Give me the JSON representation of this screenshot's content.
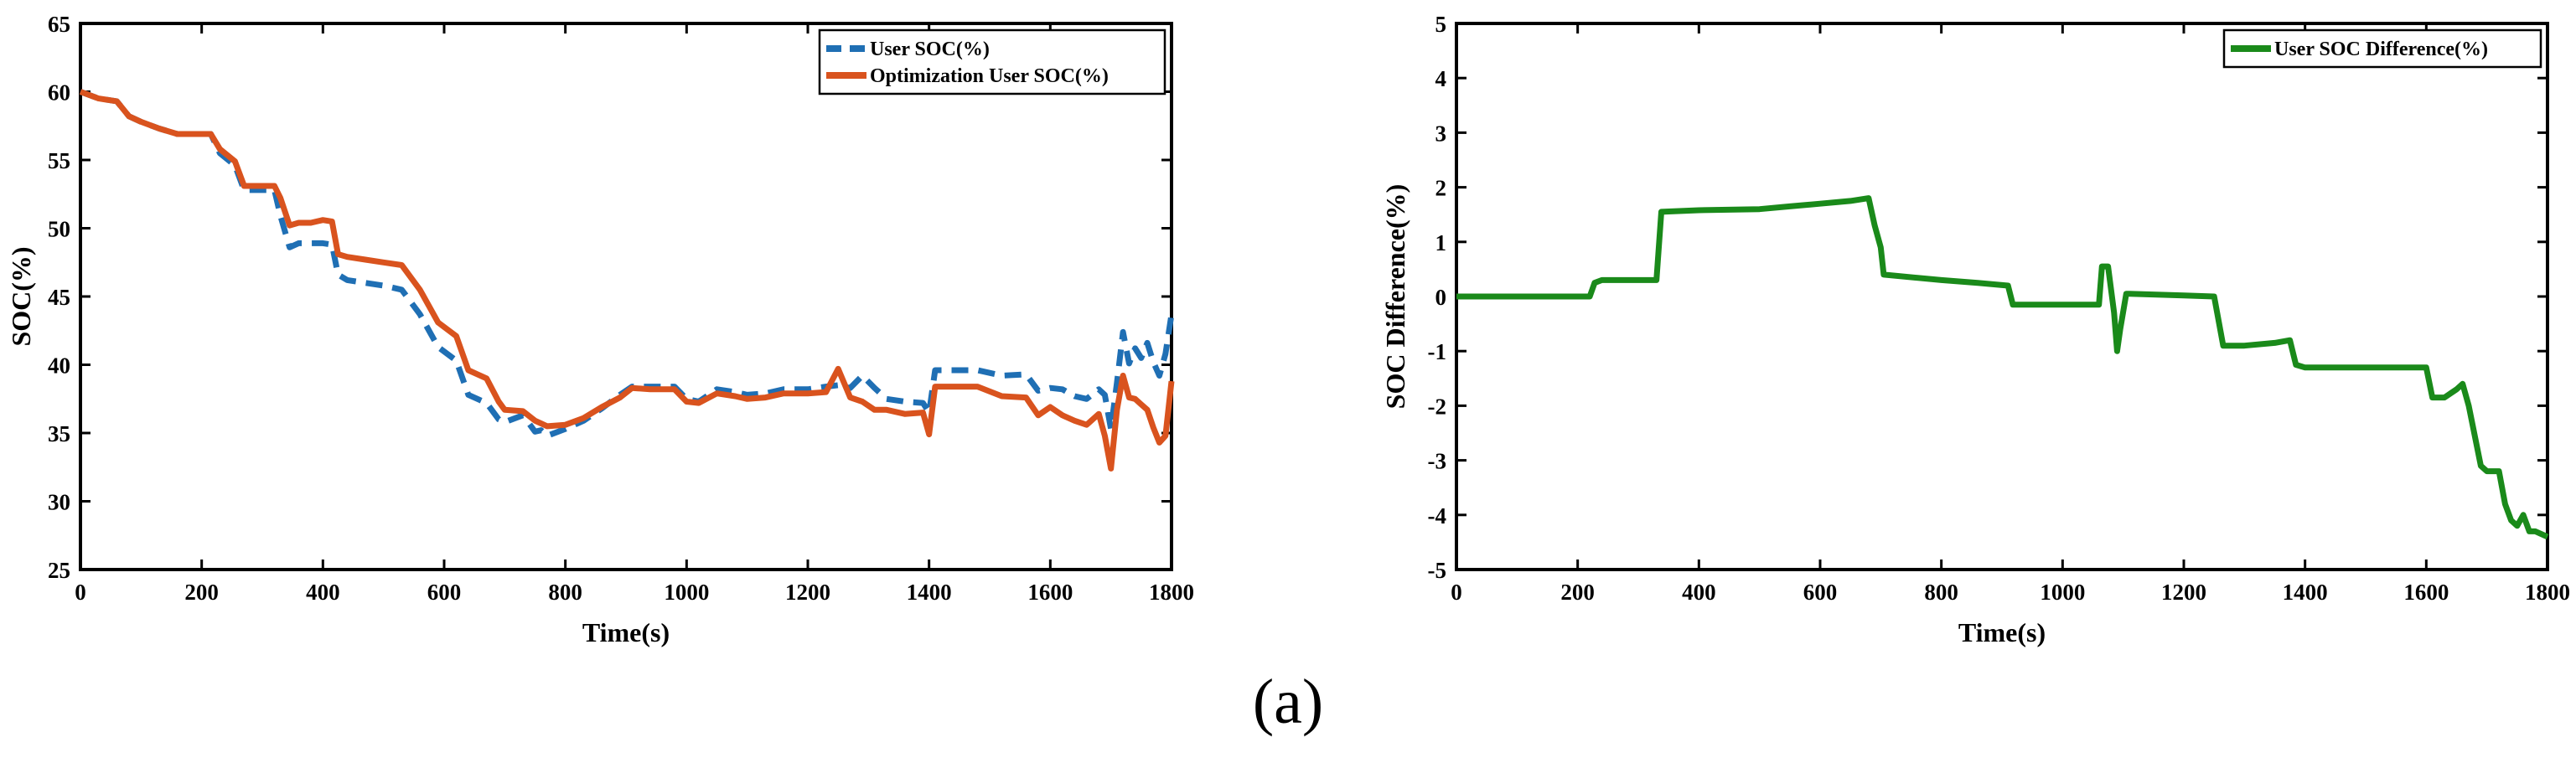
{
  "caption": "(a)",
  "chart_data": [
    {
      "type": "line",
      "title": "",
      "xlabel": "Time(s)",
      "ylabel": "SOC(%)",
      "xlim": [
        0,
        1800
      ],
      "ylim": [
        25,
        65
      ],
      "xticks": [
        0,
        200,
        400,
        600,
        800,
        1000,
        1200,
        1400,
        1600,
        1800
      ],
      "yticks": [
        25,
        30,
        35,
        40,
        45,
        50,
        55,
        60,
        65
      ],
      "xtick_labels": [
        "0",
        "200",
        "400",
        "600",
        "800",
        "1000",
        "1200",
        "1400",
        "1600",
        "1800"
      ],
      "ytick_labels": [
        "25",
        "30",
        "35",
        "40",
        "45",
        "50",
        "55",
        "60",
        "65"
      ],
      "legend_position": "top-right",
      "series": [
        {
          "name": "User SOC(%)",
          "color": "#1f6fb4",
          "style": "dashed",
          "x": [
            0,
            30,
            60,
            80,
            100,
            130,
            160,
            200,
            215,
            230,
            255,
            270,
            300,
            320,
            330,
            345,
            360,
            380,
            400,
            415,
            425,
            440,
            470,
            500,
            530,
            560,
            590,
            620,
            640,
            655,
            670,
            690,
            700,
            730,
            750,
            760,
            770,
            800,
            830,
            860,
            890,
            910,
            940,
            980,
            1000,
            1020,
            1050,
            1080,
            1100,
            1130,
            1160,
            1200,
            1230,
            1250,
            1270,
            1290,
            1310,
            1330,
            1360,
            1390,
            1400,
            1410,
            1440,
            1480,
            1520,
            1560,
            1580,
            1600,
            1620,
            1640,
            1660,
            1680,
            1690,
            1700,
            1710,
            1720,
            1730,
            1740,
            1750,
            1760,
            1770,
            1780,
            1790,
            1800
          ],
          "values": [
            60,
            59.5,
            59.3,
            58.2,
            57.8,
            57.3,
            56.9,
            56.9,
            56.9,
            55.5,
            54.6,
            52.8,
            52.8,
            52.8,
            50.9,
            48.6,
            48.9,
            48.9,
            48.9,
            48.8,
            46.6,
            46.2,
            46,
            45.8,
            45.5,
            43.7,
            41.3,
            40.3,
            37.8,
            37.5,
            37.2,
            36,
            35.8,
            36.3,
            35.1,
            35.2,
            34.8,
            35.3,
            35.9,
            36.8,
            37.8,
            38.4,
            38.4,
            38.4,
            37.5,
            37.3,
            38.2,
            38,
            37.8,
            37.9,
            38.2,
            38.2,
            38.4,
            38.5,
            38.3,
            39.2,
            38.3,
            37.5,
            37.3,
            37.2,
            36.5,
            39.6,
            39.6,
            39.6,
            39.2,
            39.3,
            38.1,
            38.3,
            38.2,
            37.7,
            37.5,
            38.2,
            37.8,
            35.3,
            38.7,
            42.4,
            40.1,
            41.2,
            40.5,
            41.6,
            40.2,
            39.2,
            40.8,
            43.7
          ]
        },
        {
          "name": "Optimization User SOC(%)",
          "color": "#d9531e",
          "style": "solid",
          "x": [
            0,
            30,
            60,
            80,
            100,
            130,
            160,
            200,
            215,
            230,
            255,
            270,
            300,
            320,
            330,
            345,
            360,
            380,
            400,
            415,
            425,
            440,
            470,
            500,
            530,
            560,
            590,
            620,
            640,
            655,
            670,
            690,
            700,
            730,
            750,
            760,
            770,
            800,
            830,
            860,
            890,
            910,
            940,
            980,
            1000,
            1020,
            1050,
            1080,
            1100,
            1130,
            1160,
            1200,
            1230,
            1250,
            1270,
            1290,
            1310,
            1330,
            1360,
            1390,
            1400,
            1410,
            1440,
            1480,
            1520,
            1560,
            1580,
            1600,
            1620,
            1640,
            1660,
            1680,
            1690,
            1700,
            1710,
            1720,
            1730,
            1740,
            1750,
            1760,
            1770,
            1780,
            1790,
            1800
          ],
          "values": [
            60,
            59.5,
            59.3,
            58.2,
            57.8,
            57.3,
            56.9,
            56.9,
            56.9,
            55.8,
            54.9,
            53.1,
            53.1,
            53.1,
            52.2,
            50.2,
            50.4,
            50.4,
            50.6,
            50.5,
            48.1,
            47.9,
            47.7,
            47.5,
            47.3,
            45.5,
            43.1,
            42.1,
            39.6,
            39.3,
            39,
            37.3,
            36.7,
            36.6,
            35.9,
            35.7,
            35.5,
            35.6,
            36.1,
            36.9,
            37.6,
            38.3,
            38.2,
            38.2,
            37.3,
            37.2,
            37.9,
            37.7,
            37.5,
            37.6,
            37.9,
            37.9,
            38,
            39.7,
            37.6,
            37.3,
            36.7,
            36.7,
            36.4,
            36.5,
            34.9,
            38.4,
            38.4,
            38.4,
            37.7,
            37.6,
            36.3,
            36.9,
            36.3,
            35.9,
            35.6,
            36.4,
            34.8,
            32.4,
            36.7,
            39.2,
            37.6,
            37.5,
            37.1,
            36.7,
            35.4,
            34.3,
            34.8,
            38.8
          ]
        }
      ]
    },
    {
      "type": "line",
      "title": "",
      "xlabel": "Time(s)",
      "ylabel": "SOC Difference(%)",
      "xlim": [
        0,
        1800
      ],
      "ylim": [
        -5,
        5
      ],
      "xticks": [
        0,
        200,
        400,
        600,
        800,
        1000,
        1200,
        1400,
        1600,
        1800
      ],
      "yticks": [
        -5,
        -4,
        -3,
        -2,
        -1,
        0,
        1,
        2,
        3,
        4,
        5
      ],
      "xtick_labels": [
        "0",
        "200",
        "400",
        "600",
        "800",
        "1000",
        "1200",
        "1400",
        "1600",
        "1800"
      ],
      "ytick_labels": [
        "-5",
        "-4",
        "-3",
        "-2",
        "-1",
        "0",
        "1",
        "2",
        "3",
        "4",
        "5"
      ],
      "legend_position": "top-right",
      "series": [
        {
          "name": "User SOC Difference(%)",
          "color": "#1a8a1a",
          "style": "solid",
          "x": [
            0,
            100,
            150,
            220,
            228,
            240,
            300,
            330,
            338,
            400,
            500,
            550,
            600,
            650,
            680,
            690,
            700,
            705,
            800,
            860,
            910,
            918,
            1000,
            1060,
            1065,
            1075,
            1085,
            1090,
            1095,
            1105,
            1110,
            1200,
            1250,
            1265,
            1270,
            1300,
            1350,
            1375,
            1385,
            1400,
            1500,
            1580,
            1600,
            1610,
            1630,
            1650,
            1660,
            1670,
            1690,
            1700,
            1720,
            1730,
            1740,
            1750,
            1760,
            1770,
            1780,
            1800
          ],
          "values": [
            0,
            0,
            0,
            0,
            0.25,
            0.3,
            0.3,
            0.3,
            1.55,
            1.58,
            1.6,
            1.65,
            1.7,
            1.75,
            1.8,
            1.3,
            0.9,
            0.4,
            0.3,
            0.25,
            0.2,
            -0.15,
            -0.15,
            -0.15,
            0.55,
            0.55,
            -0.3,
            -1,
            -0.6,
            0.05,
            0.05,
            0.02,
            0,
            -0.9,
            -0.9,
            -0.9,
            -0.85,
            -0.8,
            -1.25,
            -1.3,
            -1.3,
            -1.3,
            -1.3,
            -1.85,
            -1.85,
            -1.7,
            -1.6,
            -2,
            -3.1,
            -3.2,
            -3.2,
            -3.8,
            -4.1,
            -4.2,
            -4,
            -4.3,
            -4.3,
            -4.4
          ]
        }
      ]
    }
  ]
}
